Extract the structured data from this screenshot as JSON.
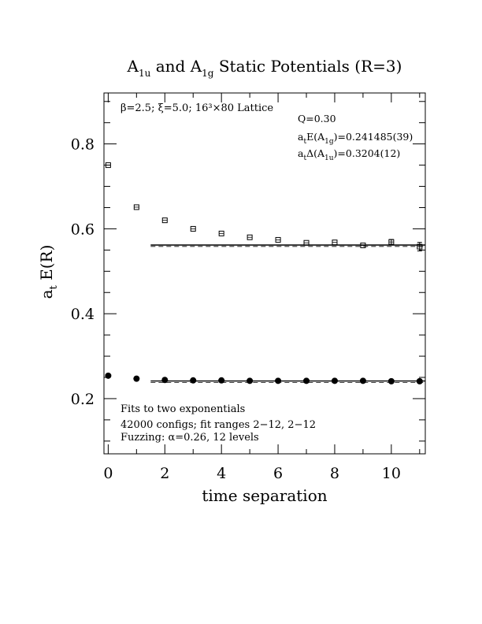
{
  "chart_data": {
    "type": "scatter",
    "title": "A1u and A1g Static Potentials (R=3)",
    "title_parts": {
      "main": "A",
      "sub1": "1u",
      "mid": " and A",
      "sub2": "1g",
      "tail": " Static Potentials (R=3)"
    },
    "xlabel": "time separation",
    "ylabel": "at E(R)",
    "ylabel_parts": {
      "main": "a",
      "sub": "t",
      "tail": " E(R)"
    },
    "xlim": [
      -0.15,
      11.2
    ],
    "ylim": [
      0.07,
      0.92
    ],
    "xticks": [
      0,
      2,
      4,
      6,
      8,
      10
    ],
    "xtick_labels": [
      "0",
      "2",
      "4",
      "6",
      "8",
      "10"
    ],
    "yticks": [
      0.2,
      0.4,
      0.6,
      0.8
    ],
    "ytick_labels": [
      "0.2",
      "0.4",
      "0.6",
      "0.8"
    ],
    "grid": false,
    "series": [
      {
        "marker": "open-square",
        "x": [
          0,
          1,
          2,
          3,
          4,
          5,
          6,
          7,
          8,
          9,
          10,
          11
        ],
        "y": [
          0.75,
          0.651,
          0.62,
          0.6,
          0.589,
          0.58,
          0.574,
          0.567,
          0.568,
          0.561,
          0.569,
          0.558
        ],
        "err": [
          0.002,
          0.002,
          0.002,
          0.002,
          0.002,
          0.002,
          0.002,
          0.002,
          0.003,
          0.004,
          0.006,
          0.01
        ]
      },
      {
        "marker": "filled-circle",
        "x": [
          0,
          1,
          2,
          3,
          4,
          5,
          6,
          7,
          8,
          9,
          10,
          11
        ],
        "y": [
          0.254,
          0.247,
          0.244,
          0.243,
          0.243,
          0.242,
          0.242,
          0.242,
          0.242,
          0.242,
          0.241,
          0.241
        ],
        "err": [
          0.001,
          0.001,
          0.001,
          0.001,
          0.001,
          0.001,
          0.001,
          0.001,
          0.001,
          0.001,
          0.001,
          0.001
        ]
      }
    ],
    "fits": [
      {
        "from": 1.5,
        "to": 11.2,
        "value": 0.5618,
        "style": "solid+dashed"
      },
      {
        "from": 1.5,
        "to": 11.2,
        "value": 0.2415,
        "style": "solid+dashed"
      }
    ],
    "annotations": {
      "lattice": "β=2.5; ξ=5.0; 16³×80 Lattice",
      "q": "Q=0.30",
      "e_a1g": {
        "pre": "a",
        "pre_sub": "t",
        "mid": "E(A",
        "mid_sub": "1g",
        "post": ")=0.241485(39)"
      },
      "delta_a1u": {
        "pre": "a",
        "pre_sub": "t",
        "mid": "Δ(A",
        "mid_sub": "1u",
        "post": ")=0.3204(12)"
      },
      "fits_note": "Fits to two exponentials",
      "configs": "42000 configs; fit ranges 2−12, 2−12",
      "fuzzing": "Fuzzing: α=0.26, 12 levels"
    }
  }
}
